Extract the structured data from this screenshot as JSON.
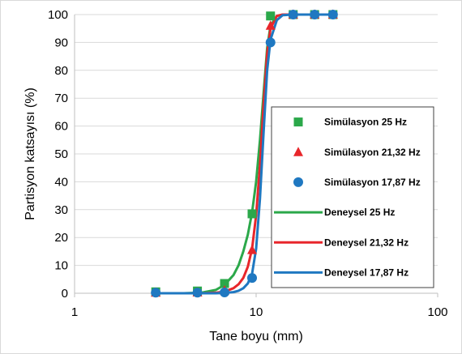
{
  "chart_data": {
    "type": "scatter",
    "title": "",
    "xlabel": "Tane boyu (mm)",
    "ylabel": "Partisyon katsayısı (%)",
    "xscale": "log",
    "xlim": [
      1,
      100
    ],
    "ylim": [
      0,
      100
    ],
    "x_ticks": [
      1,
      10,
      100
    ],
    "y_ticks": [
      0,
      10,
      20,
      30,
      40,
      50,
      60,
      70,
      80,
      90,
      100
    ],
    "grid": "horizontal",
    "legend_position": "right",
    "series": [
      {
        "name": "Simülasyon 25 Hz",
        "kind": "points",
        "marker": "square",
        "color": "#2BA84A",
        "x": [
          2.8,
          4.75,
          6.7,
          9.5,
          12.0,
          16.0,
          21.0,
          26.5
        ],
        "y": [
          0.5,
          0.8,
          3.5,
          28.5,
          99.5,
          100,
          100,
          100
        ]
      },
      {
        "name": "Simülasyon 21,32 Hz",
        "kind": "points",
        "marker": "triangle",
        "color": "#E8262B",
        "x": [
          2.8,
          4.75,
          6.7,
          9.5,
          12.0,
          16.0,
          21.0,
          26.5
        ],
        "y": [
          0.2,
          0.3,
          1.0,
          15.5,
          96.0,
          100,
          100,
          100
        ]
      },
      {
        "name": "Simülasyon 17,87 Hz",
        "kind": "points",
        "marker": "circle",
        "color": "#1F78C1",
        "x": [
          2.8,
          4.75,
          6.7,
          9.5,
          12.0,
          16.0,
          21.0,
          26.5
        ],
        "y": [
          0.2,
          0.2,
          0.3,
          5.5,
          90.0,
          100,
          100,
          100
        ]
      },
      {
        "name": "Deneysel 25 Hz",
        "kind": "line",
        "color": "#2BA84A",
        "x": [
          2.8,
          4.0,
          5.0,
          6.0,
          6.7,
          7.5,
          8.0,
          8.5,
          9.0,
          9.5,
          10.0,
          10.5,
          11.0,
          11.5,
          12.0,
          13.0,
          14.0,
          16.0,
          21.0,
          26.5
        ],
        "y": [
          0,
          0,
          0.2,
          1.2,
          3.0,
          6.5,
          10,
          15,
          21,
          29,
          40,
          55,
          72,
          88,
          96,
          99.5,
          100,
          100,
          100,
          100
        ]
      },
      {
        "name": "Deneysel 21,32 Hz",
        "kind": "line",
        "color": "#E8262B",
        "x": [
          2.8,
          4.0,
          5.0,
          6.0,
          6.7,
          7.5,
          8.0,
          8.5,
          9.0,
          9.5,
          10.0,
          10.5,
          11.0,
          11.5,
          12.0,
          13.0,
          14.0,
          16.0,
          21.0,
          26.5
        ],
        "y": [
          0,
          0,
          0,
          0.2,
          0.6,
          1.8,
          3.2,
          5.5,
          9.5,
          16,
          28,
          46,
          68,
          86,
          95,
          99.5,
          100,
          100,
          100,
          100
        ]
      },
      {
        "name": "Deneysel 17,87 Hz",
        "kind": "line",
        "color": "#1F78C1",
        "x": [
          2.8,
          4.0,
          5.0,
          6.0,
          6.7,
          7.5,
          8.0,
          8.5,
          9.0,
          9.5,
          10.0,
          10.5,
          11.0,
          11.5,
          12.0,
          13.0,
          14.0,
          16.0,
          21.0,
          26.5
        ],
        "y": [
          0,
          0,
          0,
          0,
          0.1,
          0.4,
          0.9,
          1.8,
          3.5,
          7,
          16,
          34,
          58,
          80,
          91,
          98,
          99.8,
          100,
          100,
          100
        ]
      }
    ]
  }
}
